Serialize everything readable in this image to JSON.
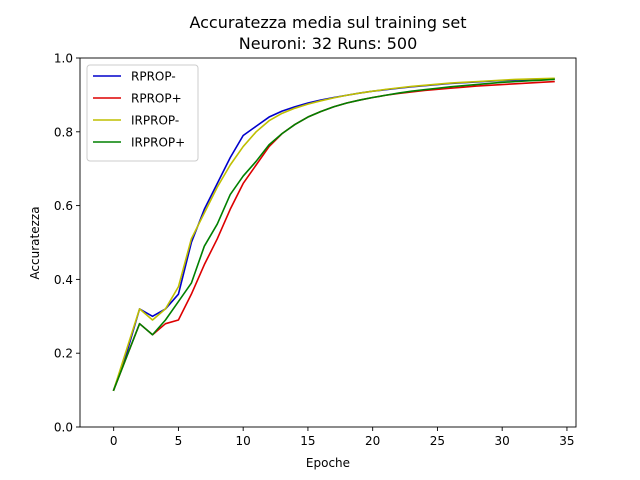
{
  "chart_data": {
    "type": "line",
    "title": "Accuratezza media sul training set",
    "subtitle": "Neuroni: 32 Runs: 500",
    "xlabel": "Epoche",
    "ylabel": "Accuratezza",
    "xlim": [
      -2.6,
      35.7
    ],
    "ylim": [
      0.0,
      1.0
    ],
    "xticks": [
      0,
      5,
      10,
      15,
      20,
      25,
      30,
      35
    ],
    "yticks": [
      0.0,
      0.2,
      0.4,
      0.6,
      0.8,
      1.0
    ],
    "xtick_labels": [
      "0",
      "5",
      "10",
      "15",
      "20",
      "25",
      "30",
      "35"
    ],
    "ytick_labels": [
      "0.0",
      "0.2",
      "0.4",
      "0.6",
      "0.8",
      "1.0"
    ],
    "grid": false,
    "legend_position": "top-left",
    "x": [
      0,
      1,
      2,
      3,
      4,
      5,
      6,
      7,
      8,
      9,
      10,
      11,
      12,
      13,
      14,
      15,
      16,
      17,
      18,
      19,
      20,
      21,
      22,
      23,
      24,
      25,
      26,
      27,
      28,
      29,
      30,
      31,
      32,
      33,
      34
    ],
    "series": [
      {
        "name": "RPROP-",
        "color": "#0000cc",
        "values": [
          0.1,
          0.2,
          0.32,
          0.3,
          0.32,
          0.36,
          0.5,
          0.59,
          0.66,
          0.73,
          0.79,
          0.815,
          0.84,
          0.856,
          0.868,
          0.878,
          0.886,
          0.893,
          0.899,
          0.905,
          0.91,
          0.914,
          0.918,
          0.922,
          0.925,
          0.928,
          0.931,
          0.933,
          0.935,
          0.937,
          0.939,
          0.94,
          0.941,
          0.942,
          0.943
        ]
      },
      {
        "name": "RPROP+",
        "color": "#dd0000",
        "values": [
          0.1,
          0.19,
          0.28,
          0.25,
          0.28,
          0.29,
          0.36,
          0.44,
          0.51,
          0.59,
          0.66,
          0.71,
          0.76,
          0.795,
          0.82,
          0.84,
          0.855,
          0.868,
          0.878,
          0.886,
          0.893,
          0.899,
          0.904,
          0.908,
          0.912,
          0.915,
          0.918,
          0.921,
          0.924,
          0.926,
          0.928,
          0.93,
          0.932,
          0.934,
          0.936
        ]
      },
      {
        "name": "IRPROP-",
        "color": "#bfbf00",
        "values": [
          0.1,
          0.21,
          0.32,
          0.29,
          0.32,
          0.38,
          0.51,
          0.58,
          0.65,
          0.71,
          0.76,
          0.8,
          0.83,
          0.85,
          0.864,
          0.875,
          0.884,
          0.892,
          0.899,
          0.905,
          0.91,
          0.915,
          0.919,
          0.923,
          0.926,
          0.929,
          0.932,
          0.934,
          0.936,
          0.938,
          0.94,
          0.942,
          0.943,
          0.944,
          0.945
        ]
      },
      {
        "name": "IRPROP+",
        "color": "#008000",
        "values": [
          0.1,
          0.19,
          0.28,
          0.25,
          0.29,
          0.34,
          0.39,
          0.49,
          0.55,
          0.63,
          0.68,
          0.72,
          0.765,
          0.795,
          0.82,
          0.84,
          0.855,
          0.868,
          0.878,
          0.886,
          0.893,
          0.899,
          0.905,
          0.91,
          0.914,
          0.918,
          0.922,
          0.925,
          0.928,
          0.931,
          0.934,
          0.936,
          0.938,
          0.94,
          0.942
        ]
      }
    ]
  }
}
